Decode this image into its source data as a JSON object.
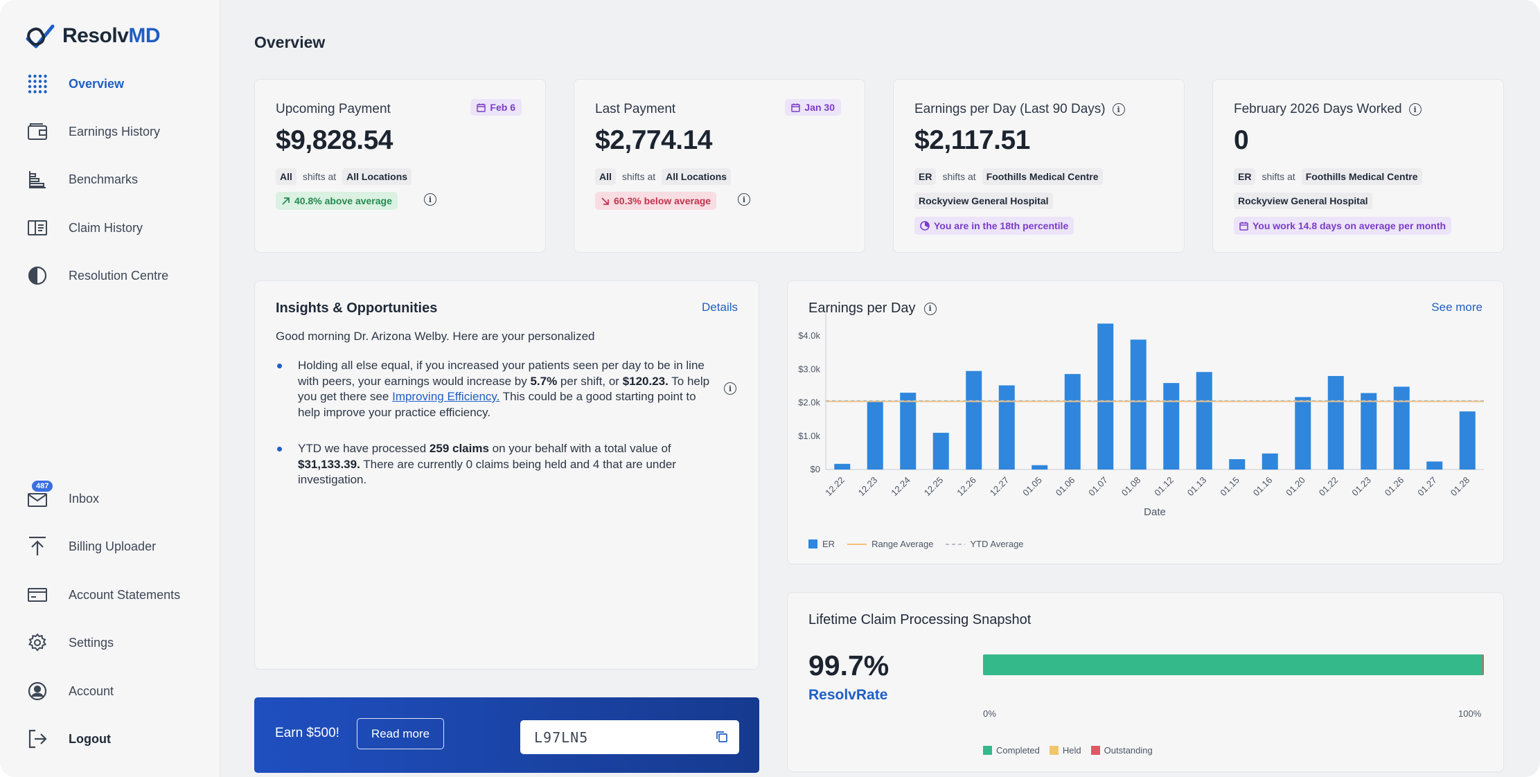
{
  "app": {
    "name_part1": "Resolv",
    "name_part2": "MD"
  },
  "sidebar": {
    "top_items": [
      {
        "label": "Overview",
        "icon": "grid-icon"
      },
      {
        "label": "Earnings History",
        "icon": "wallet-icon"
      },
      {
        "label": "Benchmarks",
        "icon": "benchmark-icon"
      },
      {
        "label": "Claim History",
        "icon": "claim-icon"
      },
      {
        "label": "Resolution Centre",
        "icon": "pie-icon"
      }
    ],
    "bottom_items": [
      {
        "label": "Inbox",
        "icon": "inbox-icon",
        "badge": "487"
      },
      {
        "label": "Billing Uploader",
        "icon": "upload-icon"
      },
      {
        "label": "Account Statements",
        "icon": "card-icon"
      },
      {
        "label": "Settings",
        "icon": "gear-icon"
      },
      {
        "label": "Account",
        "icon": "user-icon"
      },
      {
        "label": "Logout",
        "icon": "logout-icon"
      }
    ]
  },
  "page": {
    "title": "Overview"
  },
  "stats": {
    "upcoming": {
      "label": "Upcoming Payment",
      "date": "Feb 6",
      "value": "$9,828.54",
      "scope": "All",
      "shifts_at": "shifts at",
      "location": "All Locations",
      "trend": "40.8% above average"
    },
    "last": {
      "label": "Last Payment",
      "date": "Jan 30",
      "value": "$2,774.14",
      "scope": "All",
      "shifts_at": "shifts at",
      "location": "All Locations",
      "trend": "60.3% below average"
    },
    "epd": {
      "label": "Earnings per Day (Last 90 Days)",
      "value": "$2,117.51",
      "scope": "ER",
      "shifts_at": "shifts at",
      "location1": "Foothills Medical Centre",
      "location2": "Rockyview General Hospital",
      "note": "You are in the 18th percentile"
    },
    "days": {
      "label": "February 2026 Days Worked",
      "value": "0",
      "scope": "ER",
      "shifts_at": "shifts at",
      "location1": "Foothills Medical Centre",
      "location2": "Rockyview General Hospital",
      "note": "You work 14.8 days on average per month"
    }
  },
  "insights": {
    "title": "Insights & Opportunities",
    "details": "Details",
    "greeting": "Good morning Dr. Arizona Welby. Here are your personalized",
    "b1_p1": "Holding all else equal, if you increased your patients seen per day to be in line with peers, your earnings would increase by ",
    "b1_pct": "5.7%",
    "b1_p2": " per shift, or ",
    "b1_amt": "$120.23.",
    "b1_p3": " To help you get there see ",
    "b1_link": "Improving Efficiency.",
    "b1_p4": " This could be a good starting point to help improve your practice efficiency.",
    "b2_p1": "YTD we have processed ",
    "b2_claims": "259 claims",
    "b2_p2": " on your behalf with a total value of ",
    "b2_amt": "$31,133.39.",
    "b2_p3": " There are currently 0 claims being held and 4 that are under investigation."
  },
  "banner": {
    "text": "Earn $500!",
    "button": "Read more",
    "code": "L97LN5"
  },
  "earnings_chart": {
    "title": "Earnings per Day",
    "see_more": "See more"
  },
  "chart_data": {
    "type": "bar",
    "xlabel": "Date",
    "ylabel": "",
    "ylim": [
      0,
      4500
    ],
    "y_ticks": [
      "$0",
      "$1.0k",
      "$2.0k",
      "$3.0k",
      "$4.0k"
    ],
    "y_tick_values": [
      0,
      1000,
      2000,
      3000,
      4000
    ],
    "categories": [
      "12.22",
      "12.23",
      "12.24",
      "12.25",
      "12.26",
      "12.27",
      "01.05",
      "01.06",
      "01.07",
      "01.08",
      "01.12",
      "01.13",
      "01.15",
      "01.16",
      "01.20",
      "01.22",
      "01.23",
      "01.26",
      "01.27",
      "01.28"
    ],
    "series": [
      {
        "name": "ER",
        "values": [
          170,
          2050,
          2300,
          1100,
          2950,
          2520,
          130,
          2860,
          4370,
          3890,
          2590,
          2920,
          310,
          480,
          2170,
          2800,
          2290,
          2480,
          240,
          1740
        ]
      }
    ],
    "reference_lines": [
      {
        "name": "Range Average",
        "value": 2040
      },
      {
        "name": "YTD Average",
        "value": 2060
      }
    ],
    "legend": [
      "ER",
      "Range Average",
      "YTD Average"
    ],
    "legend_position": "bottom-left",
    "grid": false,
    "colors": {
      "bar": "#2f86dc",
      "range": "#f2c17a",
      "ytd": "#b8bcc4"
    }
  },
  "snapshot": {
    "title": "Lifetime Claim Processing Snapshot",
    "pct": "99.7%",
    "rate_label": "ResolvRate",
    "axis_start": "0%",
    "axis_end": "100%",
    "completed_fraction": 0.997,
    "legend": [
      "Completed",
      "Held",
      "Outstanding"
    ],
    "colors": {
      "completed": "#34b98a",
      "held": "#f2c56b",
      "outstanding": "#e05865"
    }
  }
}
